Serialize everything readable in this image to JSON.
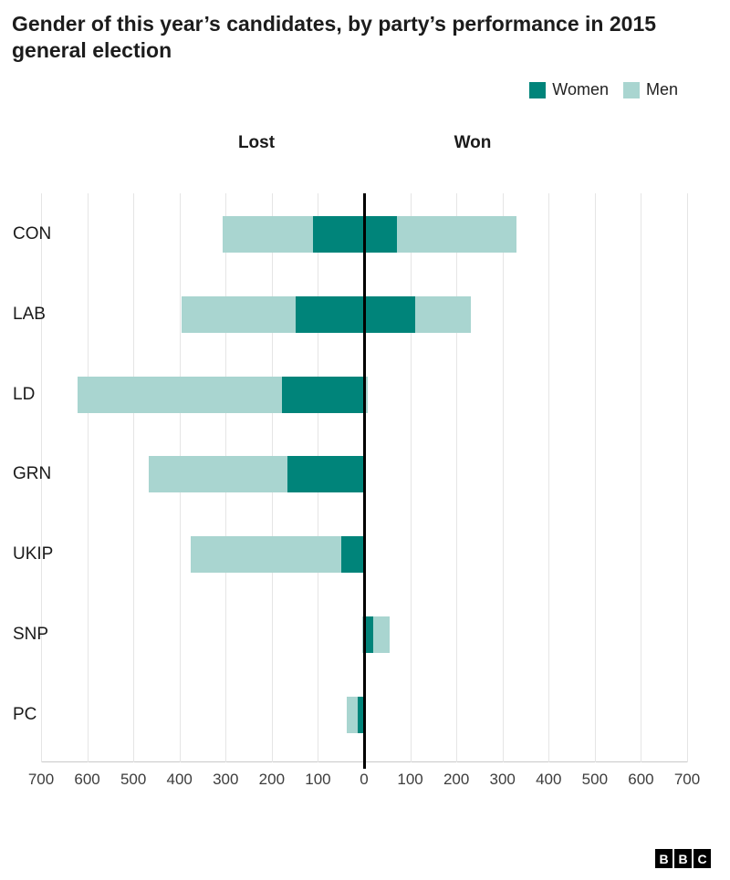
{
  "title": "Gender of this year’s candidates, by party’s performance in 2015 general election",
  "legend": [
    {
      "label": "Women",
      "color": "#00847a"
    },
    {
      "label": "Men",
      "color": "#a9d5d0"
    }
  ],
  "side_labels": {
    "lost": "Lost",
    "won": "Won"
  },
  "chart_data": {
    "type": "bar",
    "orientation": "horizontal-diverging-stacked",
    "title": "Gender of this year’s candidates, by party’s performance in 2015 general election",
    "series_names": [
      "Women",
      "Men"
    ],
    "unit_axis": {
      "max": 700,
      "ticks": [
        "700",
        "600",
        "500",
        "400",
        "300",
        "200",
        "100",
        "0",
        "100",
        "200",
        "300",
        "400",
        "500",
        "600",
        "700"
      ]
    },
    "parties": [
      {
        "label": "CON",
        "lost": {
          "women": 110,
          "men": 196
        },
        "won": {
          "women": 72,
          "men": 258
        }
      },
      {
        "label": "LAB",
        "lost": {
          "women": 148,
          "men": 248
        },
        "won": {
          "women": 111,
          "men": 121
        }
      },
      {
        "label": "LD",
        "lost": {
          "women": 178,
          "men": 443
        },
        "won": {
          "women": 0,
          "men": 8
        }
      },
      {
        "label": "GRN",
        "lost": {
          "women": 166,
          "men": 301
        },
        "won": {
          "women": 1,
          "men": 0
        }
      },
      {
        "label": "UKIP",
        "lost": {
          "women": 49,
          "men": 327
        },
        "won": {
          "women": 0,
          "men": 1
        }
      },
      {
        "label": "SNP",
        "lost": {
          "women": 1,
          "men": 2
        },
        "won": {
          "women": 20,
          "men": 36
        }
      },
      {
        "label": "PC",
        "lost": {
          "women": 13,
          "men": 24
        },
        "won": {
          "women": 1,
          "men": 2
        }
      }
    ]
  },
  "footer": {
    "logo_letters": [
      "B",
      "B",
      "C"
    ]
  }
}
